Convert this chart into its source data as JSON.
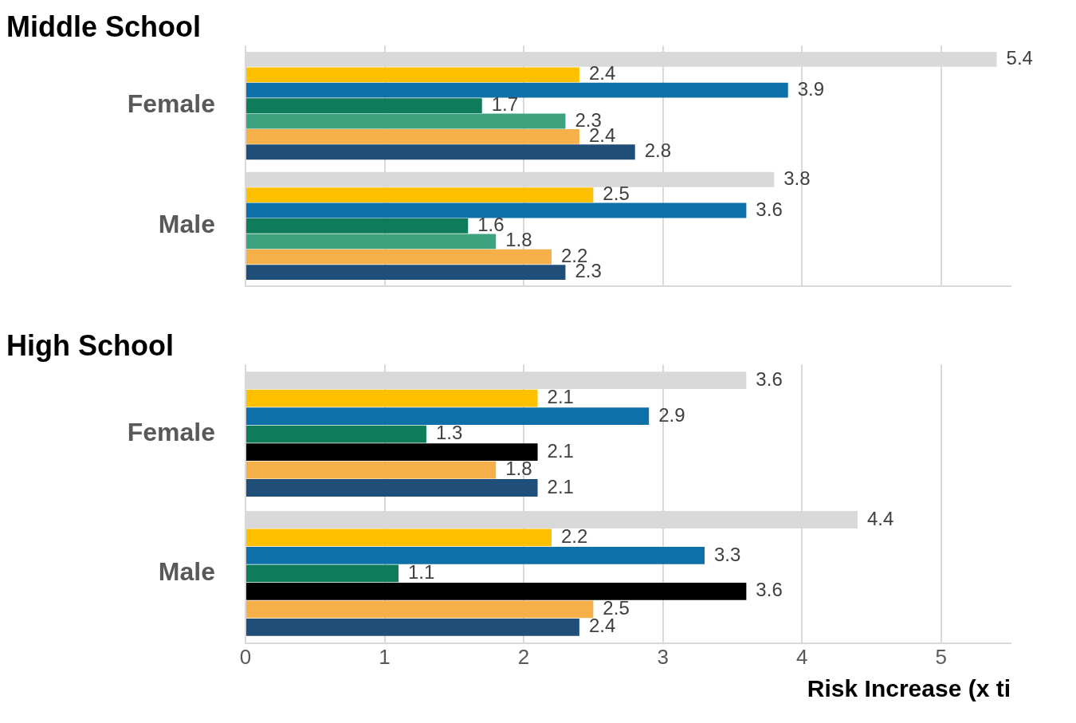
{
  "chart_data": [
    {
      "type": "bar",
      "orientation": "horizontal",
      "title": "Middle School",
      "categories": [
        "Female",
        "Male"
      ],
      "xlim": [
        0,
        5.5
      ],
      "xticks": [
        0,
        1,
        2,
        3,
        4,
        5
      ],
      "grid": "x",
      "tick_labels": "y",
      "data_labels": true,
      "series": [
        {
          "color": "#d9d9d9",
          "values": [
            5.4,
            3.8
          ]
        },
        {
          "color": "#ffc000",
          "values": [
            2.4,
            2.5
          ]
        },
        {
          "color": "#0e70a8",
          "values": [
            3.9,
            3.6
          ]
        },
        {
          "color": "#0e7c5a",
          "values": [
            1.7,
            1.6
          ]
        },
        {
          "color": "#3fa27e",
          "values": [
            2.3,
            1.8
          ]
        },
        {
          "color": "#f6b04a",
          "values": [
            2.4,
            2.2
          ]
        },
        {
          "color": "#1f4e79",
          "values": [
            2.8,
            2.3
          ]
        }
      ]
    },
    {
      "type": "bar",
      "orientation": "horizontal",
      "title": "High School",
      "xlabel": "Risk Increase (x ti",
      "categories": [
        "Female",
        "Male"
      ],
      "xlim": [
        0,
        5.5
      ],
      "xticks": [
        0,
        1,
        2,
        3,
        4,
        5
      ],
      "grid": "x",
      "data_labels": true,
      "series": [
        {
          "color": "#d9d9d9",
          "values": [
            3.6,
            4.4
          ]
        },
        {
          "color": "#ffc000",
          "values": [
            2.1,
            2.2
          ]
        },
        {
          "color": "#0e70a8",
          "values": [
            2.9,
            3.3
          ]
        },
        {
          "color": "#0e7c5a",
          "values": [
            1.3,
            1.1
          ]
        },
        {
          "color": "#000000",
          "values": [
            2.1,
            3.6
          ]
        },
        {
          "color": "#f6b04a",
          "values": [
            1.8,
            2.5
          ]
        },
        {
          "color": "#1f4e79",
          "values": [
            2.1,
            2.4
          ]
        }
      ]
    }
  ]
}
